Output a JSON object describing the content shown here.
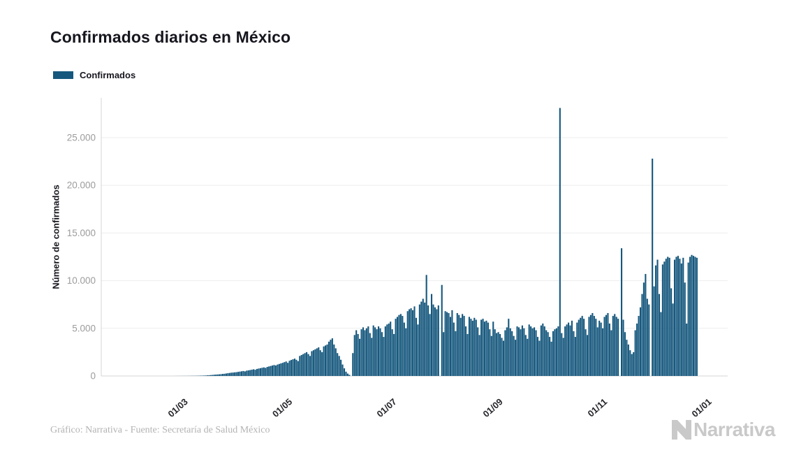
{
  "header": {
    "title": "Confirmados diarios en México"
  },
  "legend": {
    "label": "Confirmados"
  },
  "footer": {
    "credit": "Gráfico: Narrativa - Fuente: Secretaría de Salud México",
    "brand_name": "Narrativa"
  },
  "colors": {
    "bar": "#15577d",
    "grid": "#ededed",
    "axis_line": "#d4d4d4",
    "y_tick_text": "#9c9c9c",
    "x_tick_text": "#26262c",
    "title_text": "#16161e",
    "credit_text": "#b3b3b3",
    "brand": "#c9c9c9"
  },
  "chart_data": {
    "type": "bar",
    "title": "Confirmados diarios en México",
    "xlabel": "",
    "ylabel": "Número de confirmados",
    "legend_entries": [
      "Confirmados"
    ],
    "legend_position": "top-left",
    "grid": true,
    "ylim": [
      0,
      28115
    ],
    "y_ticks": [
      {
        "label": "0",
        "value": 0
      },
      {
        "label": "5.000",
        "value": 5000
      },
      {
        "label": "10.000",
        "value": 10000
      },
      {
        "label": "15.000",
        "value": 15000
      },
      {
        "label": "20.000",
        "value": 20000
      },
      {
        "label": "25.000",
        "value": 25000
      }
    ],
    "x_ticks": [
      {
        "label": "01/03",
        "date": "2020-03-01"
      },
      {
        "label": "01/05",
        "date": "2020-05-01"
      },
      {
        "label": "01/07",
        "date": "2020-07-01"
      },
      {
        "label": "01/09",
        "date": "2020-09-01"
      },
      {
        "label": "01/11",
        "date": "2020-11-01"
      },
      {
        "label": "01/01",
        "date": "2021-01-01"
      }
    ],
    "x_domain": [
      "2020-01-15",
      "2021-01-15"
    ],
    "series": [
      {
        "name": "Confirmados",
        "frequency": "daily",
        "start_date": "2020-02-27",
        "end_date": "2020-12-28",
        "values": [
          1,
          2,
          4,
          5,
          5,
          6,
          7,
          8,
          11,
          12,
          15,
          16,
          18,
          21,
          26,
          32,
          38,
          43,
          52,
          65,
          82,
          93,
          110,
          131,
          145,
          160,
          175,
          190,
          215,
          230,
          260,
          290,
          315,
          345,
          360,
          380,
          400,
          430,
          460,
          490,
          520,
          480,
          560,
          590,
          620,
          660,
          700,
          650,
          740,
          780,
          820,
          860,
          900,
          850,
          950,
          1000,
          1050,
          1100,
          1150,
          1100,
          1200,
          1260,
          1320,
          1380,
          1450,
          1520,
          1380,
          1600,
          1680,
          1750,
          1820,
          1700,
          1560,
          2100,
          2200,
          2300,
          2400,
          2500,
          2300,
          2100,
          2600,
          2700,
          2800,
          2900,
          3000,
          2700,
          2500,
          3100,
          3200,
          3300,
          3600,
          3800,
          3950,
          3300,
          2900,
          2400,
          2100,
          1700,
          1200,
          800,
          450,
          250,
          120,
          0,
          2400,
          4300,
          4800,
          4400,
          3900,
          4900,
          5100,
          4800,
          5000,
          5200,
          4500,
          4000,
          5300,
          5100,
          4900,
          5200,
          5000,
          4600,
          4100,
          5200,
          5400,
          5500,
          5700,
          4900,
          4400,
          6000,
          6200,
          6400,
          6500,
          6300,
          5600,
          5000,
          6800,
          7000,
          7100,
          6900,
          7300,
          6100,
          5400,
          7500,
          7800,
          8100,
          7700,
          10600,
          7400,
          6500,
          8600,
          7500,
          7200,
          7000,
          7400,
          0,
          9550,
          4600,
          6800,
          6700,
          6600,
          6200,
          6900,
          5600,
          4700,
          6600,
          6400,
          6100,
          6500,
          6300,
          5200,
          4400,
          6200,
          6000,
          5800,
          6100,
          5900,
          5100,
          4300,
          5900,
          6000,
          5700,
          5800,
          5600,
          4900,
          4200,
          5700,
          4900,
          4500,
          4600,
          4400,
          4000,
          3700,
          4800,
          5100,
          6000,
          5000,
          4700,
          4200,
          3800,
          5200,
          5100,
          4900,
          5300,
          5000,
          4300,
          3900,
          5400,
          5200,
          5000,
          5100,
          4800,
          4100,
          3700,
          5300,
          5500,
          5200,
          4800,
          4600,
          4100,
          3600,
          4700,
          4900,
          5000,
          5200,
          28115,
          4500,
          4000,
          5200,
          5400,
          5600,
          5300,
          5800,
          4700,
          4100,
          5600,
          5900,
          6100,
          6300,
          6000,
          4900,
          4300,
          6200,
          6400,
          6600,
          6300,
          6000,
          5100,
          5800,
          5600,
          5000,
          6200,
          6400,
          6600,
          5500,
          4800,
          6300,
          6500,
          6200,
          6000,
          0,
          13400,
          5900,
          4600,
          3800,
          3300,
          2700,
          2300,
          2500,
          4800,
          5500,
          6300,
          7200,
          8600,
          9800,
          10700,
          8100,
          7500,
          0,
          22800,
          9400,
          11600,
          12200,
          8600,
          6700,
          11700,
          12000,
          12300,
          12500,
          12400,
          9200,
          7600,
          12200,
          12500,
          12600,
          12300,
          11800,
          12400,
          9800,
          5500,
          11900,
          12500,
          12700,
          12600,
          12500,
          12400
        ]
      }
    ]
  }
}
